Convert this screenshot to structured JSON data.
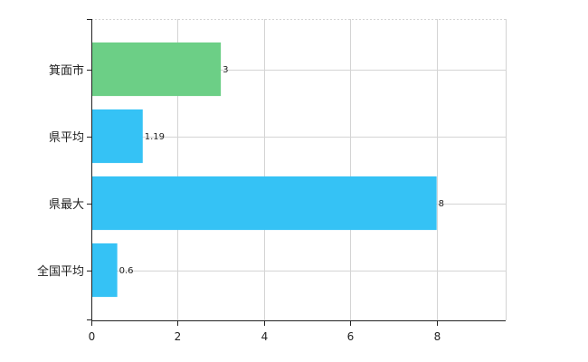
{
  "chart_data": {
    "type": "bar",
    "orientation": "horizontal",
    "title": "",
    "xlabel": "",
    "ylabel": "",
    "categories": [
      "箕面市",
      "県平均",
      "県最大",
      "全国平均"
    ],
    "values": [
      3,
      1.19,
      8,
      0.6
    ],
    "data_labels": [
      "3",
      "1.19",
      "8",
      "0.6"
    ],
    "xlim": [
      0,
      9.6
    ],
    "xticks": [
      0,
      2,
      4,
      6,
      8
    ],
    "xtick_labels": [
      "0",
      "2",
      "4",
      "6",
      "8"
    ],
    "grid": true,
    "legend": "none",
    "colors": {
      "highlight": "#6ccf86",
      "default": "#35c2f5",
      "grid": "#d4d4d4",
      "axis": "#222222"
    },
    "highlight_categories": [
      "箕面市"
    ]
  }
}
